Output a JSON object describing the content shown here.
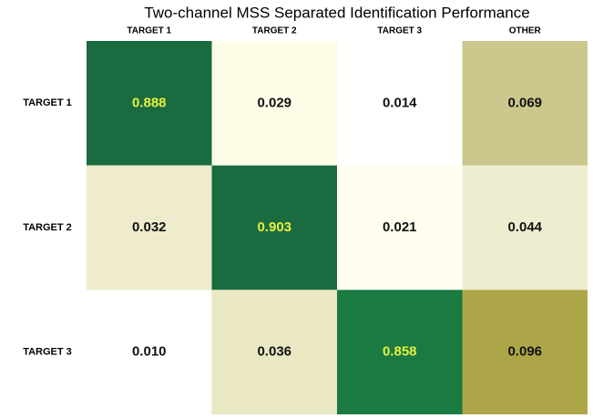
{
  "chart_data": {
    "type": "heatmap",
    "title": "Two-channel MSS Separated Identification Performance",
    "columns": [
      "TARGET 1",
      "TARGET 2",
      "TARGET 3",
      "OTHER"
    ],
    "rows": [
      "TARGET 1",
      "TARGET 2",
      "TARGET 3"
    ],
    "values": [
      [
        0.888,
        0.029,
        0.014,
        0.069
      ],
      [
        0.032,
        0.903,
        0.021,
        0.044
      ],
      [
        0.01,
        0.036,
        0.858,
        0.096
      ]
    ],
    "value_labels": [
      [
        "0.888",
        "0.029",
        "0.014",
        "0.069"
      ],
      [
        "0.032",
        "0.903",
        "0.021",
        "0.044"
      ],
      [
        "0.010",
        "0.036",
        "0.858",
        "0.096"
      ]
    ],
    "colors": [
      [
        "#1a6b40",
        "#fdfce6",
        "#fffffe",
        "#cbc78d"
      ],
      [
        "#efecce",
        "#1a6b40",
        "#fefdf0",
        "#efedcf"
      ],
      [
        "#fffffe",
        "#eae7c3",
        "#1a7a42",
        "#aca648"
      ]
    ],
    "text_colors": [
      [
        "#e6f03c",
        "#111111",
        "#111111",
        "#111111"
      ],
      [
        "#111111",
        "#e6f03c",
        "#111111",
        "#111111"
      ],
      [
        "#111111",
        "#111111",
        "#e6f03c",
        "#111111"
      ]
    ]
  }
}
